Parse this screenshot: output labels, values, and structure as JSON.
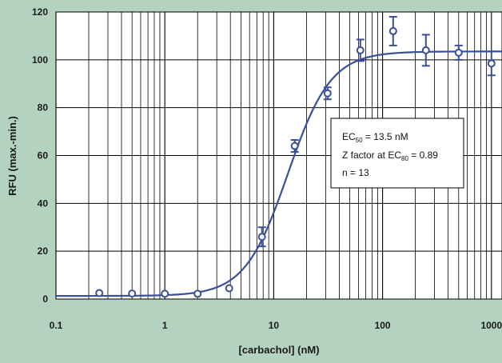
{
  "chart_data": {
    "type": "scatter",
    "title": "",
    "xlabel": "[carbachol] (nM)",
    "ylabel": "RFU (max.-min.)",
    "xscale": "log",
    "xlim": [
      0.1,
      1250
    ],
    "ylim": [
      0,
      120
    ],
    "grid": true,
    "x_ticks": [
      0.1,
      1,
      10,
      100,
      1000
    ],
    "x_tick_labels": [
      "0.1",
      "1",
      "10",
      "100",
      "1000"
    ],
    "y_ticks": [
      0,
      20,
      40,
      60,
      80,
      100,
      120
    ],
    "y_tick_labels": [
      "0",
      "20",
      "40",
      "60",
      "80",
      "100",
      "120"
    ],
    "colors": {
      "background": "#b4d2c0",
      "plot_area": "#ffffff",
      "series": "#3a4f9a",
      "grid": "#000000"
    },
    "series": [
      {
        "type": "scatter",
        "marker": "open-circle",
        "x": [
          0.25,
          0.5,
          1,
          2,
          3.9,
          7.8,
          15.6,
          31.25,
          62.5,
          125,
          250,
          500,
          1000
        ],
        "y": [
          2.5,
          2.3,
          2.2,
          2.2,
          4.5,
          26,
          64,
          86,
          104,
          112,
          104,
          103,
          98.5
        ],
        "error": [
          0,
          0,
          0,
          0,
          0,
          4,
          2.5,
          2.5,
          4.5,
          6,
          6.5,
          3,
          5
        ]
      },
      {
        "type": "line",
        "fit": "sigmoidal-dose-response",
        "bottom": 1.3,
        "top": 103.5,
        "ec50": 13.5,
        "hill": 2.2,
        "x_range": [
          0.1,
          1250
        ]
      }
    ],
    "annotation": {
      "line1_main": "EC",
      "line1_sub": "50",
      "line1_rest": " = 13.5 nM",
      "line2_main": "Z factor at EC",
      "line2_sub": "80",
      "line2_rest": " = 0.89",
      "line3": "n = 13"
    }
  }
}
